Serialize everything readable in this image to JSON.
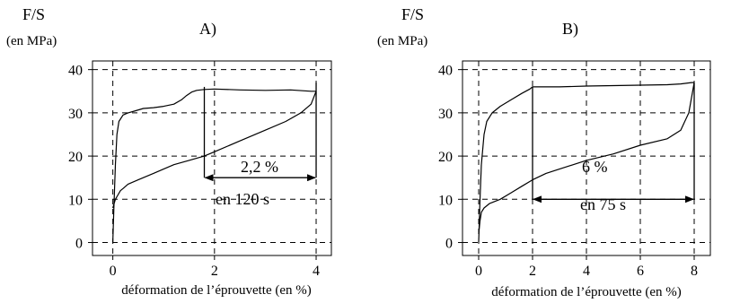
{
  "chart_data": [
    {
      "type": "line",
      "panel_label": "A)",
      "ylabel": "F/S",
      "ylabel_unit": "(en MPa)",
      "xlabel": "déformation de l’éprouvette (en %)",
      "xlim": [
        -0.4,
        4.3
      ],
      "ylim": [
        -3,
        42
      ],
      "xticks": [
        0,
        2,
        4
      ],
      "yticks": [
        0,
        10,
        20,
        30,
        40
      ],
      "grid": true,
      "series": [
        {
          "x": [
            0,
            0.02,
            0.05,
            0.08,
            0.12,
            0.2,
            0.3,
            0.45,
            0.6,
            0.8,
            1.0,
            1.2,
            1.35,
            1.45,
            1.55,
            1.65,
            1.8,
            2.0,
            2.5,
            3.0,
            3.5,
            3.9,
            4.0
          ],
          "y": [
            0,
            8,
            18,
            25,
            28,
            29.5,
            30,
            30.5,
            31,
            31.2,
            31.5,
            32,
            33,
            34,
            34.8,
            35.2,
            35.4,
            35.5,
            35.3,
            35.2,
            35.3,
            35,
            35
          ]
        },
        {
          "x": [
            0,
            0.05,
            0.1,
            0.15,
            0.2,
            0.3,
            0.5,
            0.8,
            1.0,
            1.2,
            1.5,
            1.8,
            2.0,
            2.5,
            3.0,
            3.4,
            3.7,
            3.9,
            4.0
          ],
          "y": [
            8,
            10,
            11,
            12,
            12.5,
            13.5,
            14.5,
            16,
            17,
            18,
            19,
            20,
            21,
            23.5,
            26,
            28,
            30,
            32,
            35
          ]
        }
      ],
      "annotation": {
        "value": "2,2 %",
        "duration": "en 120 s",
        "from_x": 1.8,
        "to_x": 4.0,
        "arrow_y": 15
      }
    },
    {
      "type": "line",
      "panel_label": "B)",
      "ylabel": "F/S",
      "ylabel_unit": "(en MPa)",
      "xlabel": "déformation de l’éprouvette (en %)",
      "xlim": [
        -0.6,
        8.6
      ],
      "ylim": [
        -3,
        42
      ],
      "xticks": [
        0,
        2,
        4,
        6,
        8
      ],
      "yticks": [
        0,
        10,
        20,
        30,
        40
      ],
      "grid": true,
      "series": [
        {
          "x": [
            0,
            0.05,
            0.1,
            0.2,
            0.3,
            0.5,
            0.8,
            1.2,
            1.6,
            1.9,
            2.0,
            3.0,
            4.0,
            5.0,
            6.0,
            7.0,
            7.5,
            7.9,
            8.0
          ],
          "y": [
            0,
            10,
            18,
            25,
            28,
            30,
            31.5,
            33,
            34.5,
            35.5,
            36,
            36,
            36.2,
            36.3,
            36.4,
            36.5,
            36.7,
            37,
            37
          ]
        },
        {
          "x": [
            0,
            0.05,
            0.1,
            0.2,
            0.4,
            0.8,
            1.2,
            1.6,
            2.0,
            2.5,
            3.0,
            4.0,
            5.0,
            6.0,
            7.0,
            7.5,
            7.8,
            8.0
          ],
          "y": [
            2,
            5,
            7,
            8,
            9,
            10,
            11.5,
            13,
            14.5,
            16,
            17,
            19,
            20.5,
            22.5,
            24,
            26,
            30,
            37
          ]
        }
      ],
      "annotation": {
        "value": "6 %",
        "duration": "en 75 s",
        "from_x": 2.0,
        "to_x": 8.0,
        "arrow_y": 10
      }
    }
  ]
}
